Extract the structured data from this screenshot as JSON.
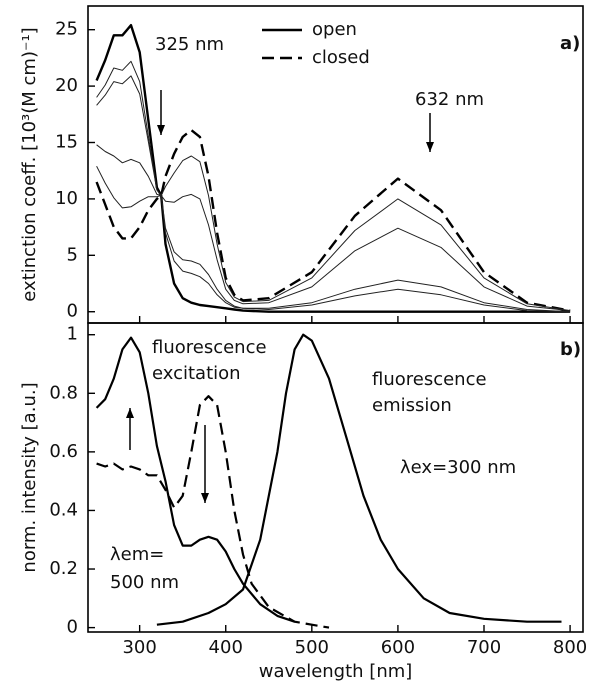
{
  "chart_data": [
    {
      "type": "line",
      "ylabel": "extinction coeff. [10³(M cm)⁻¹]",
      "xlim": [
        240,
        815
      ],
      "ylim": [
        -1,
        27.1
      ],
      "yticks": [
        0,
        5,
        10,
        15,
        20,
        25
      ],
      "legend": "top-center",
      "annotations": [
        "325 nm",
        "632 nm",
        "a)"
      ],
      "x": [
        250,
        260,
        270,
        280,
        290,
        300,
        310,
        320,
        325,
        330,
        340,
        350,
        360,
        370,
        380,
        390,
        400,
        410,
        420,
        450,
        500,
        550,
        600,
        650,
        700,
        750,
        800
      ],
      "series": [
        {
          "name": "open",
          "color": "#000000",
          "dash": false,
          "width": 2.4,
          "values": [
            20.5,
            22.3,
            24.5,
            24.5,
            25.4,
            23,
            17,
            11,
            10.3,
            6,
            2.5,
            1.2,
            0.8,
            0.6,
            0.5,
            0.4,
            0.3,
            0.2,
            0.1,
            0,
            0,
            0,
            0,
            0,
            0,
            0,
            0
          ]
        },
        {
          "name": "closed",
          "color": "#000000",
          "dash": true,
          "width": 2.4,
          "values": [
            11.5,
            9.5,
            7.5,
            6.5,
            6.5,
            7.5,
            9,
            10,
            10.3,
            12,
            14,
            15.5,
            16.1,
            15.5,
            12,
            7,
            3,
            1.5,
            1,
            1.2,
            3.5,
            8.5,
            11.8,
            9,
            3.5,
            0.8,
            0.1
          ]
        },
        {
          "color": "#222222",
          "dash": false,
          "width": 1,
          "values": [
            19.0,
            20.1,
            21.6,
            21.4,
            22.2,
            20.4,
            15.6,
            10.8,
            10.3,
            7.0,
            4.5,
            3.6,
            3.4,
            3.1,
            2.5,
            1.5,
            0.8,
            0.4,
            0.3,
            0.2,
            0.6,
            1.4,
            2.0,
            1.5,
            0.6,
            0.1,
            0
          ]
        },
        {
          "color": "#222222",
          "dash": false,
          "width": 1,
          "values": [
            18.3,
            19.2,
            20.4,
            20.2,
            20.9,
            19.3,
            15.1,
            10.8,
            10.3,
            7.4,
            5.3,
            4.6,
            4.5,
            4.2,
            3.3,
            2.0,
            1.0,
            0.5,
            0.3,
            0.3,
            0.8,
            2.0,
            2.8,
            2.2,
            0.8,
            0.2,
            0
          ]
        },
        {
          "color": "#222222",
          "dash": false,
          "width": 1,
          "values": [
            14.8,
            14.2,
            13.8,
            13.2,
            13.5,
            13.2,
            12.0,
            10.4,
            10.3,
            9.8,
            9.7,
            10.2,
            10.4,
            10.0,
            7.7,
            4.6,
            2.0,
            1.0,
            0.7,
            0.8,
            2.2,
            5.4,
            7.4,
            5.7,
            2.2,
            0.5,
            0.1
          ]
        },
        {
          "color": "#222222",
          "dash": false,
          "width": 1,
          "values": [
            12.9,
            11.4,
            10.1,
            9.2,
            9.3,
            9.8,
            10.2,
            10.2,
            10.3,
            11.1,
            12.3,
            13.4,
            13.8,
            13.3,
            10.3,
            6.0,
            2.6,
            1.3,
            0.9,
            1.0,
            3.0,
            7.2,
            10.0,
            7.7,
            3.0,
            0.7,
            0.1
          ]
        }
      ]
    },
    {
      "type": "line",
      "ylabel": "norm. intensity [a.u.]",
      "xlabel": "wavelength [nm]",
      "xlim": [
        240,
        815
      ],
      "ylim": [
        -0.015,
        1.04
      ],
      "xticks": [
        300,
        400,
        500,
        600,
        700,
        800
      ],
      "yticks": [
        0,
        0.2,
        0.4,
        0.6,
        0.8,
        1
      ],
      "annotations": [
        "fluorescence",
        "excitation",
        "fluorescence",
        "emission",
        "λex=300 nm",
        "λem=",
        "500 nm",
        "b)"
      ],
      "series": [
        {
          "color": "#000000",
          "dash": false,
          "width": 2.2,
          "x": [
            250,
            260,
            270,
            280,
            290,
            300,
            310,
            320,
            330,
            340,
            350,
            360,
            370,
            380,
            390,
            400,
            410,
            420,
            440,
            460,
            480
          ],
          "values": [
            0.75,
            0.78,
            0.85,
            0.95,
            0.99,
            0.94,
            0.8,
            0.62,
            0.5,
            0.35,
            0.28,
            0.28,
            0.3,
            0.31,
            0.3,
            0.26,
            0.2,
            0.15,
            0.08,
            0.04,
            0.02
          ]
        },
        {
          "color": "#000000",
          "dash": true,
          "width": 2.2,
          "x": [
            250,
            260,
            270,
            280,
            290,
            300,
            310,
            320,
            330,
            340,
            350,
            360,
            370,
            380,
            390,
            400,
            410,
            420,
            430,
            450,
            480,
            500,
            520
          ],
          "values": [
            0.56,
            0.55,
            0.56,
            0.54,
            0.55,
            0.54,
            0.52,
            0.52,
            0.47,
            0.41,
            0.45,
            0.6,
            0.76,
            0.79,
            0.76,
            0.6,
            0.4,
            0.25,
            0.15,
            0.07,
            0.02,
            0.01,
            0
          ]
        },
        {
          "color": "#000000",
          "dash": false,
          "width": 2.2,
          "x": [
            320,
            350,
            380,
            400,
            420,
            440,
            460,
            470,
            480,
            490,
            500,
            520,
            540,
            560,
            580,
            600,
            630,
            660,
            700,
            750,
            790
          ],
          "values": [
            0.01,
            0.02,
            0.05,
            0.08,
            0.13,
            0.3,
            0.6,
            0.8,
            0.95,
            1.0,
            0.98,
            0.85,
            0.65,
            0.45,
            0.3,
            0.2,
            0.1,
            0.05,
            0.03,
            0.02,
            0.02
          ]
        }
      ]
    }
  ]
}
